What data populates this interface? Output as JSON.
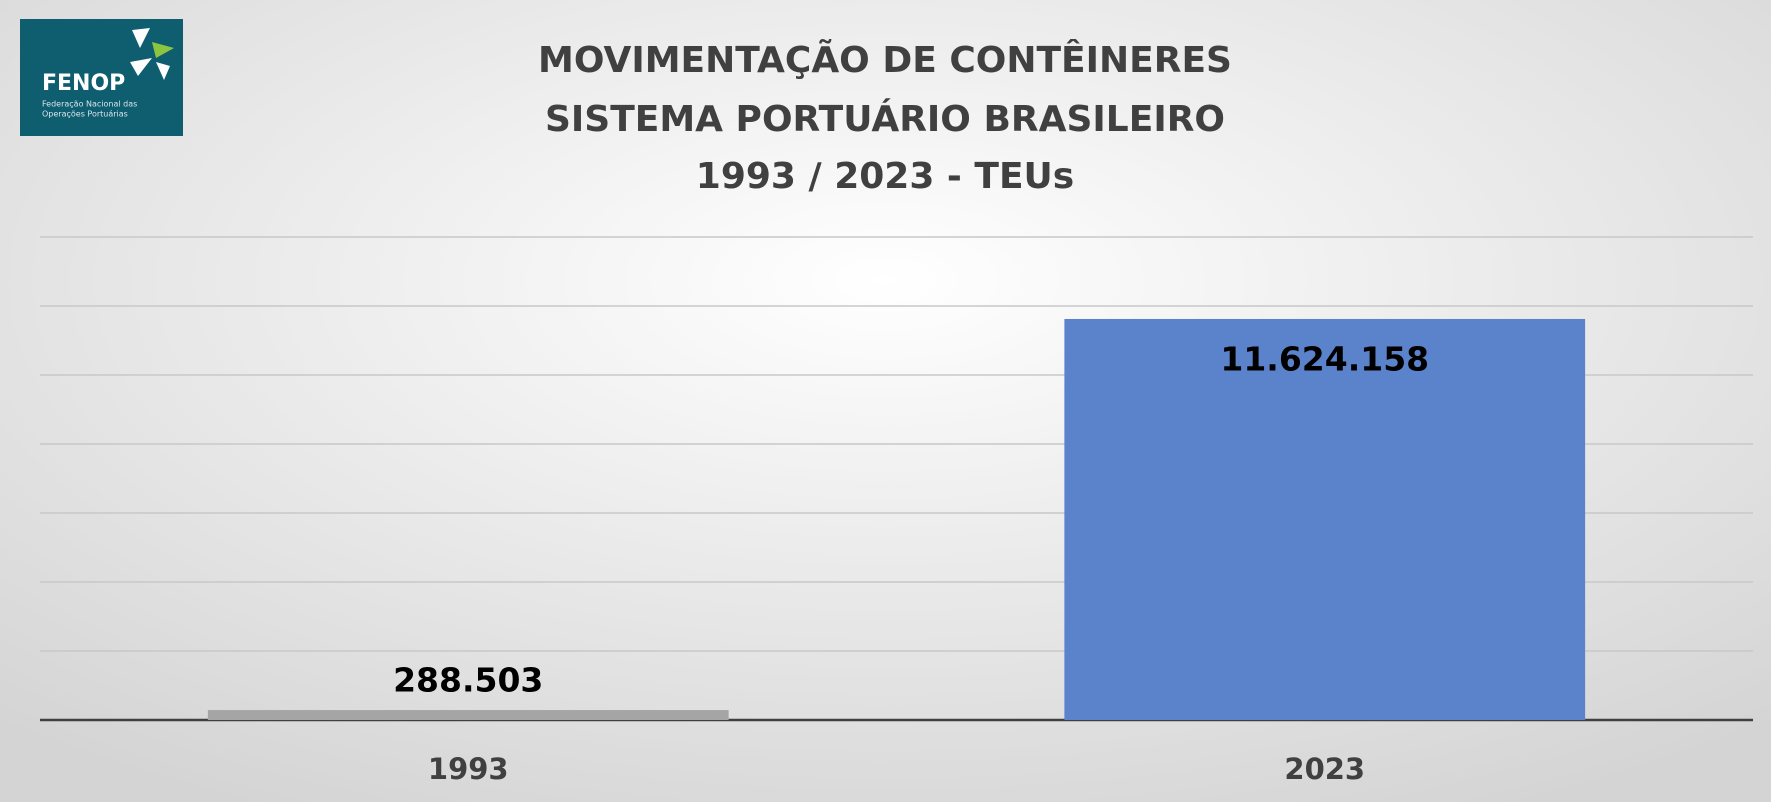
{
  "logo": {
    "name": "FENOP",
    "tagline": [
      "Federação Nacional das",
      "Operações Portuárias"
    ]
  },
  "chart_data": {
    "type": "bar",
    "title": [
      "MOVIMENTAÇÃO DE CONTÊINERES",
      "SISTEMA PORTUÁRIO BRASILEIRO",
      "1993 / 2023 - TEUs"
    ],
    "categories": [
      "1993",
      "2023"
    ],
    "values": [
      288503,
      11624158
    ],
    "value_labels": [
      "288.503",
      "11.624.158"
    ],
    "colors": [
      "#a5a5a5",
      "#5b83cc"
    ],
    "ylim": [
      0,
      14000000
    ],
    "yticks": [
      0,
      2000000,
      4000000,
      6000000,
      8000000,
      10000000,
      12000000,
      14000000
    ],
    "grid": true,
    "show_ytick_labels": false
  }
}
